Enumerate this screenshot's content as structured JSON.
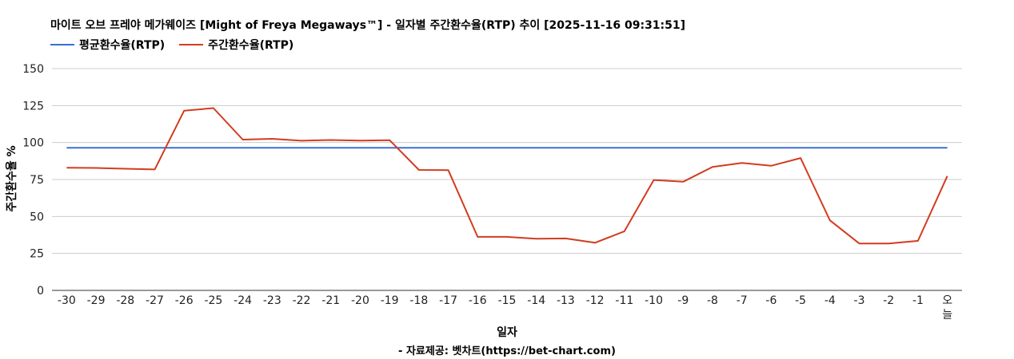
{
  "chart_data": {
    "type": "line",
    "title": "마이트 오브 프레야 메가웨이즈 [Might of Freya Megaways™] - 일자별 주간환수율(RTP) 추이 [2025-11-16 09:31:51]",
    "xlabel": "일자",
    "ylabel": "주간환수율 %",
    "ylim": [
      0,
      150
    ],
    "yticks": [
      0,
      25,
      50,
      75,
      100,
      125,
      150
    ],
    "grid": true,
    "legend_position": "top-left",
    "categories": [
      "-30",
      "-29",
      "-28",
      "-27",
      "-26",
      "-25",
      "-24",
      "-23",
      "-22",
      "-21",
      "-20",
      "-19",
      "-18",
      "-17",
      "-16",
      "-15",
      "-14",
      "-13",
      "-12",
      "-11",
      "-10",
      "-9",
      "-8",
      "-7",
      "-6",
      "-5",
      "-4",
      "-3",
      "-2",
      "-1",
      "오늘"
    ],
    "series": [
      {
        "name": "평균환수율(RTP)",
        "color": "#3a6fd8",
        "values": [
          96.5,
          96.5,
          96.5,
          96.5,
          96.5,
          96.5,
          96.5,
          96.5,
          96.5,
          96.5,
          96.5,
          96.5,
          96.5,
          96.5,
          96.5,
          96.5,
          96.5,
          96.5,
          96.5,
          96.5,
          96.5,
          96.5,
          96.5,
          96.5,
          96.5,
          96.5,
          96.5,
          96.5,
          96.5,
          96.5,
          96.5
        ]
      },
      {
        "name": "주간환수율(RTP)",
        "color": "#d23c1f",
        "values": [
          83,
          82.8,
          82.3,
          81.8,
          121.5,
          123.3,
          102,
          102.5,
          101.2,
          101.7,
          101.3,
          101.6,
          81.5,
          81.3,
          36.2,
          36.2,
          34.9,
          35.1,
          32.2,
          40,
          74.7,
          73.5,
          83.5,
          86.2,
          84.3,
          89.5,
          47.4,
          31.7,
          31.7,
          33.5,
          77.3
        ]
      }
    ]
  },
  "footer": "- 자료제공: 벳차트(https://bet-chart.com)"
}
